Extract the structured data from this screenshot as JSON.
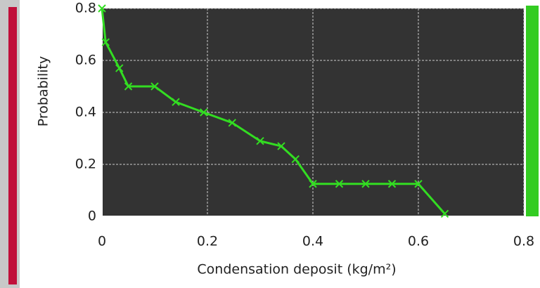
{
  "chart_data": {
    "type": "line",
    "x_label": "Condensation deposit (kg/m²)",
    "y_label": "Probability",
    "x": [
      0,
      0.007,
      0.033,
      0.05,
      0.1,
      0.14,
      0.193,
      0.247,
      0.3,
      0.34,
      0.367,
      0.4,
      0.45,
      0.5,
      0.55,
      0.6,
      0.65
    ],
    "series": [
      {
        "name": "Probability",
        "color": "#33dd22",
        "values": [
          0.8,
          0.67,
          0.57,
          0.5,
          0.5,
          0.44,
          0.4,
          0.36,
          0.29,
          0.27,
          0.22,
          0.125,
          0.125,
          0.125,
          0.125,
          0.125,
          0.01
        ]
      }
    ],
    "xlim": [
      0,
      0.8
    ],
    "ylim": [
      0,
      0.8
    ],
    "xticks": [
      0,
      0.2,
      0.4,
      0.6,
      0.8
    ],
    "yticks": [
      0,
      0.2,
      0.4,
      0.6,
      0.8
    ],
    "grid": true
  }
}
